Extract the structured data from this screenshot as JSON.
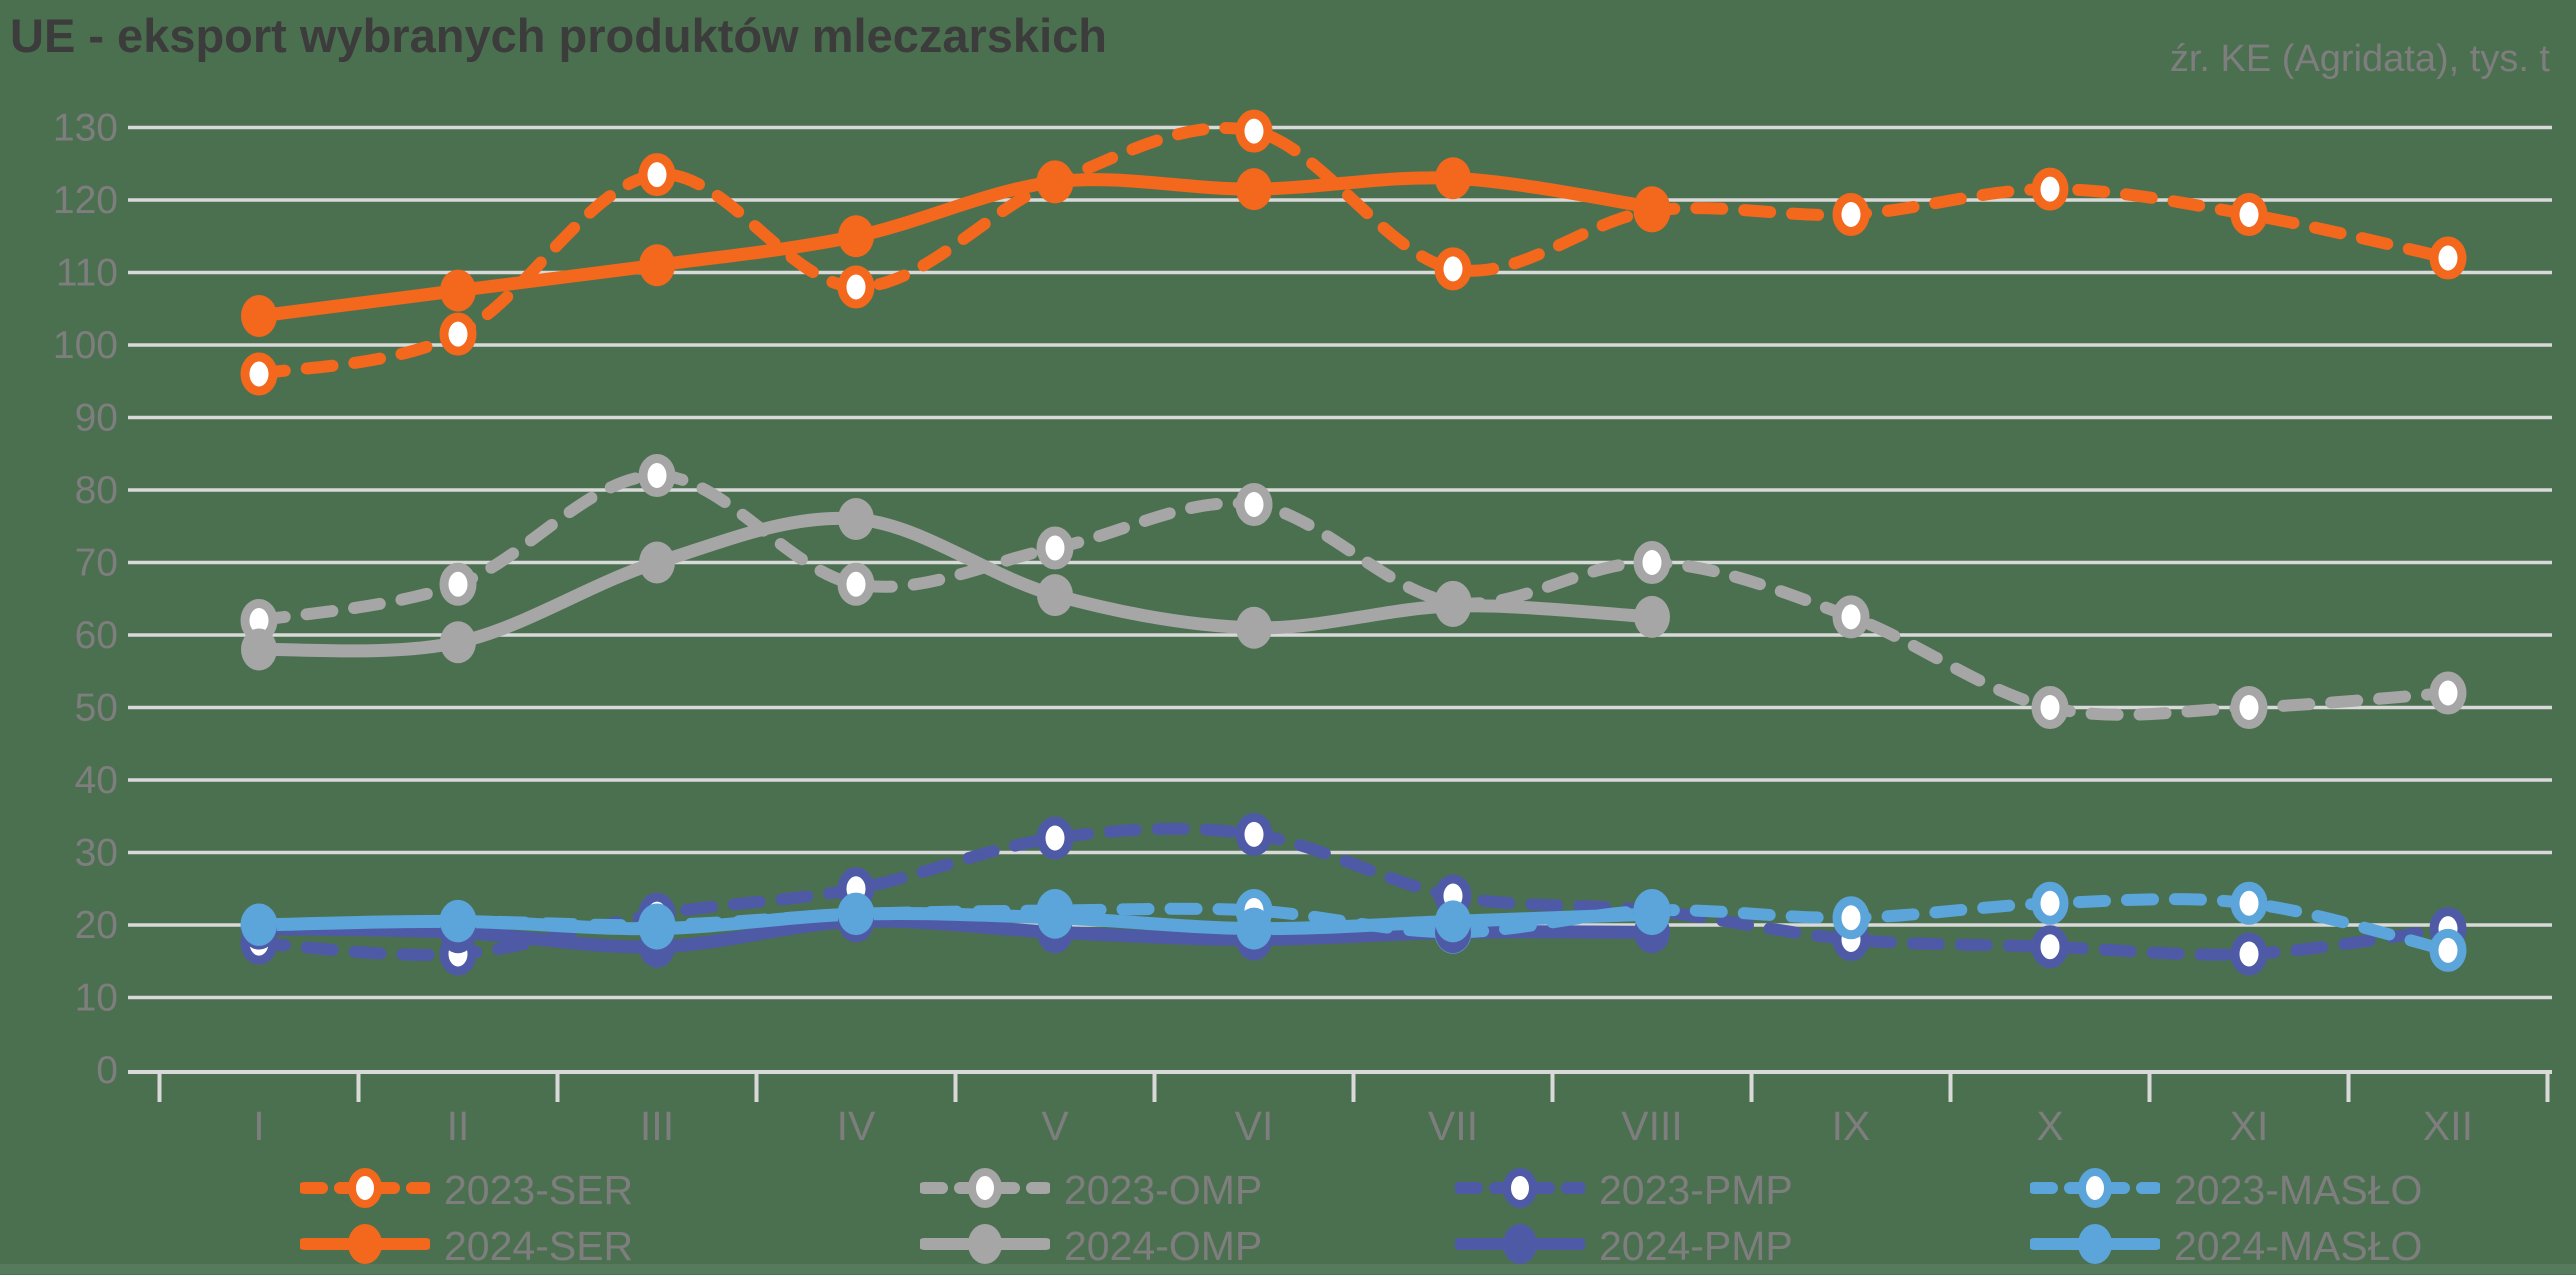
{
  "title": "UE - eksport wybranych produktów mleczarskich",
  "source_note": "źr. KE (Agridata), tys. t",
  "colors": {
    "background": "#4B7050",
    "background_strip": "#567A5C",
    "title": "#3C3C3C",
    "label": "#7E7E7E",
    "gridline": "#D9D9D9",
    "ser": "#F3681C",
    "omp": "#A6A6A6",
    "pmp": "#4F5AA7",
    "maslo": "#5BA5DB"
  },
  "chart_data": {
    "type": "line",
    "title": "UE - eksport wybranych produktów mleczarskich",
    "subtitle": "źr. KE (Agridata), tys. t",
    "unit": "tys. t",
    "x_categories": [
      "I",
      "II",
      "III",
      "IV",
      "V",
      "VI",
      "VII",
      "VIII",
      "IX",
      "X",
      "XI",
      "XII"
    ],
    "ylim": [
      0,
      130
    ],
    "ytick_step": 10,
    "grid": "horizontal",
    "legend_position": "bottom",
    "series": [
      {
        "name": "2023-SER",
        "color_key": "ser",
        "style": "dashed",
        "values": [
          96,
          101.5,
          123.5,
          108,
          122.5,
          129.5,
          110.5,
          118.5,
          118,
          121.5,
          118,
          112
        ]
      },
      {
        "name": "2024-SER",
        "color_key": "ser",
        "style": "solid",
        "values": [
          104,
          107.5,
          111,
          115,
          122.5,
          121.5,
          123,
          119
        ]
      },
      {
        "name": "2023-OMP",
        "color_key": "omp",
        "style": "dashed",
        "values": [
          62,
          67,
          82,
          67,
          72,
          78,
          64.5,
          70,
          62.5,
          50,
          50,
          52
        ]
      },
      {
        "name": "2024-OMP",
        "color_key": "omp",
        "style": "solid",
        "values": [
          58,
          59,
          70,
          76,
          65.5,
          61,
          64,
          62.5
        ]
      },
      {
        "name": "2023-PMP",
        "color_key": "pmp",
        "style": "dashed",
        "values": [
          17.5,
          16,
          21.5,
          25,
          32,
          32.5,
          24,
          22,
          18,
          17,
          16,
          19.5
        ]
      },
      {
        "name": "2024-PMP",
        "color_key": "pmp",
        "style": "solid",
        "values": [
          19.5,
          19,
          17,
          20.5,
          19,
          18,
          19,
          19
        ]
      },
      {
        "name": "2023-MASŁO",
        "color_key": "maslo",
        "style": "dashed",
        "values": [
          20,
          20.5,
          20,
          21.5,
          22,
          22,
          19,
          22,
          21,
          23,
          23,
          16.5
        ]
      },
      {
        "name": "2024-MASŁO",
        "color_key": "maslo",
        "style": "solid",
        "values": [
          20,
          20.5,
          19.5,
          21.5,
          21,
          19.5,
          20.5,
          21.5
        ]
      }
    ]
  }
}
